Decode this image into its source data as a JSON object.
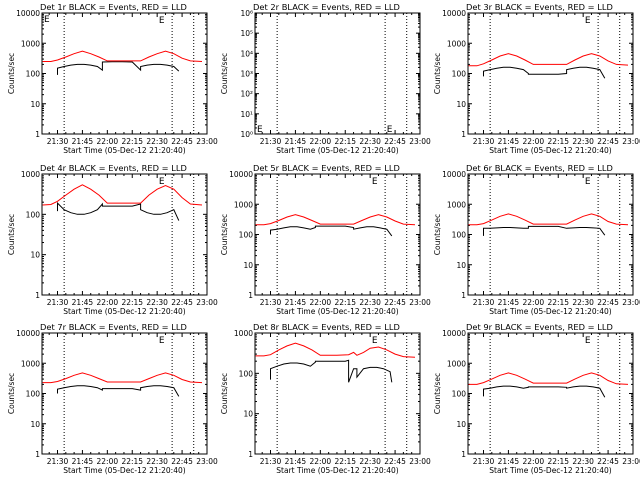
{
  "colors": {
    "events": "#000000",
    "lld": "#ff0000",
    "axis": "#000000",
    "background": "#ffffff"
  },
  "chart_data": [
    {
      "type": "line",
      "title": "Det 1r BLACK = Events, RED = LLD",
      "xlabel": "Start Time (05-Dec-12 21:20:40)",
      "ylabel": "Counts/sec",
      "ylim": [
        1,
        10000
      ],
      "yscale": "log",
      "xticks": [
        "21:30",
        "21:45",
        "22:00",
        "22:15",
        "22:30",
        "22:45",
        "23:00"
      ],
      "yticks": [
        "1",
        "10",
        "100",
        "1000",
        "10000"
      ],
      "markers": [
        "E",
        "E"
      ],
      "series": [
        {
          "name": "Events",
          "x": [
            "21:29",
            "21:30",
            "21:30",
            "21:34",
            "21:38",
            "21:42",
            "21:46",
            "21:50",
            "21:54",
            "21:57",
            "21:57",
            "22:03",
            "22:09",
            "22:15",
            "22:20",
            "22:20",
            "22:24",
            "22:28",
            "22:32",
            "22:36",
            "22:40",
            "22:43",
            "22:43"
          ],
          "y": [
            null,
            90,
            150,
            170,
            190,
            200,
            200,
            190,
            170,
            130,
            240,
            245,
            245,
            240,
            130,
            170,
            190,
            200,
            200,
            190,
            170,
            120,
            null
          ]
        },
        {
          "name": "LLD",
          "x": [
            "21:21",
            "21:26",
            "21:30",
            "21:35",
            "21:40",
            "21:45",
            "21:50",
            "21:55",
            "22:00",
            "22:10",
            "22:20",
            "22:25",
            "22:30",
            "22:35",
            "22:40",
            "22:45",
            "22:50",
            "22:57"
          ],
          "y": [
            250,
            250,
            280,
            350,
            450,
            550,
            450,
            350,
            260,
            260,
            260,
            350,
            450,
            550,
            450,
            320,
            260,
            250
          ]
        }
      ]
    },
    {
      "type": "line",
      "title": "Det 2r BLACK = Events, RED = LLD",
      "xlabel": "Start Time (05-Dec-12 21:20:40)",
      "ylabel": "Counts/sec",
      "ylim": [
        1,
        1000000
      ],
      "yscale": "log",
      "xticks": [
        "21:30",
        "21:45",
        "22:00",
        "22:15",
        "22:30",
        "22:45",
        "23:00"
      ],
      "yticks": [
        "10^0",
        "10^1",
        "10^2",
        "10^3",
        "10^4",
        "10^5",
        "10^6"
      ],
      "markers": [
        "E",
        "E"
      ],
      "series": []
    },
    {
      "type": "line",
      "title": "Det 3r BLACK = Events, RED = LLD",
      "xlabel": "Start Time (05-Dec-12 21:20:40)",
      "ylabel": "Counts/sec",
      "ylim": [
        1,
        10000
      ],
      "yscale": "log",
      "xticks": [
        "21:30",
        "21:45",
        "22:00",
        "22:15",
        "22:30",
        "22:45",
        "23:00"
      ],
      "yticks": [
        "1",
        "10",
        "100",
        "1000",
        "10000"
      ],
      "markers": [
        "E"
      ],
      "series": [
        {
          "name": "Events",
          "x": [
            "21:30",
            "21:30",
            "21:34",
            "21:38",
            "21:42",
            "21:46",
            "21:50",
            "21:54",
            "21:57",
            "21:57",
            "22:03",
            "22:09",
            "22:15",
            "22:20",
            "22:20",
            "22:24",
            "22:28",
            "22:32",
            "22:36",
            "22:40",
            "22:43",
            "22:43"
          ],
          "y": [
            80,
            120,
            135,
            150,
            160,
            160,
            150,
            135,
            100,
            95,
            95,
            95,
            95,
            100,
            135,
            150,
            160,
            160,
            150,
            135,
            70,
            null
          ]
        },
        {
          "name": "LLD",
          "x": [
            "21:21",
            "21:26",
            "21:30",
            "21:35",
            "21:40",
            "21:45",
            "21:50",
            "21:55",
            "22:00",
            "22:10",
            "22:20",
            "22:25",
            "22:30",
            "22:35",
            "22:40",
            "22:45",
            "22:50",
            "22:57"
          ],
          "y": [
            180,
            180,
            210,
            280,
            380,
            450,
            380,
            280,
            200,
            200,
            200,
            280,
            380,
            450,
            380,
            260,
            200,
            190
          ]
        }
      ]
    },
    {
      "type": "line",
      "title": "Det 4r BLACK = Events, RED = LLD",
      "xlabel": "Start Time (05-Dec-12 21:20:40)",
      "ylabel": "Counts/sec",
      "ylim": [
        1,
        1000
      ],
      "yscale": "log",
      "xticks": [
        "21:30",
        "21:45",
        "22:00",
        "22:15",
        "22:30",
        "22:45",
        "23:00"
      ],
      "yticks": [
        "1",
        "10",
        "100",
        "1000"
      ],
      "markers": [
        "E"
      ],
      "series": [
        {
          "name": "Events",
          "x": [
            "21:30",
            "21:30",
            "21:34",
            "21:38",
            "21:42",
            "21:46",
            "21:50",
            "21:54",
            "21:57",
            "21:57",
            "22:03",
            "22:09",
            "22:15",
            "22:20",
            "22:20",
            "22:24",
            "22:28",
            "22:32",
            "22:36",
            "22:40",
            "22:43",
            "22:43"
          ],
          "y": [
            120,
            190,
            130,
            110,
            100,
            100,
            110,
            130,
            180,
            160,
            160,
            160,
            160,
            180,
            130,
            110,
            100,
            100,
            110,
            130,
            70,
            null
          ]
        },
        {
          "name": "LLD",
          "x": [
            "21:21",
            "21:26",
            "21:30",
            "21:35",
            "21:40",
            "21:45",
            "21:50",
            "21:55",
            "22:00",
            "22:10",
            "22:20",
            "22:25",
            "22:30",
            "22:35",
            "22:40",
            "22:45",
            "22:50",
            "22:57"
          ],
          "y": [
            170,
            175,
            210,
            300,
            420,
            540,
            420,
            300,
            190,
            190,
            190,
            300,
            420,
            520,
            420,
            260,
            180,
            170
          ]
        }
      ]
    },
    {
      "type": "line",
      "title": "Det 5r BLACK = Events, RED = LLD",
      "xlabel": "Start Time (05-Dec-12 21:20:40)",
      "ylabel": "Counts/sec",
      "ylim": [
        1,
        10000
      ],
      "yscale": "log",
      "xticks": [
        "21:30",
        "21:45",
        "22:00",
        "22:15",
        "22:30",
        "22:45",
        "23:00"
      ],
      "yticks": [
        "1",
        "10",
        "100",
        "1000",
        "10000"
      ],
      "markers": [
        "E"
      ],
      "series": [
        {
          "name": "Events",
          "x": [
            "21:30",
            "21:30",
            "21:34",
            "21:38",
            "21:42",
            "21:46",
            "21:50",
            "21:54",
            "21:57",
            "21:57",
            "22:03",
            "22:09",
            "22:15",
            "22:20",
            "22:20",
            "22:24",
            "22:28",
            "22:32",
            "22:36",
            "22:40",
            "22:43",
            "22:43"
          ],
          "y": [
            100,
            140,
            150,
            165,
            180,
            180,
            165,
            150,
            170,
            190,
            190,
            190,
            190,
            170,
            150,
            165,
            180,
            180,
            165,
            150,
            90,
            null
          ]
        },
        {
          "name": "LLD",
          "x": [
            "21:21",
            "21:26",
            "21:30",
            "21:35",
            "21:40",
            "21:45",
            "21:50",
            "21:55",
            "22:00",
            "22:10",
            "22:20",
            "22:25",
            "22:30",
            "22:35",
            "22:40",
            "22:45",
            "22:50",
            "22:57"
          ],
          "y": [
            210,
            210,
            230,
            290,
            380,
            450,
            380,
            290,
            220,
            220,
            220,
            290,
            380,
            450,
            380,
            280,
            220,
            210
          ]
        }
      ]
    },
    {
      "type": "line",
      "title": "Det 6r BLACK = Events, RED = LLD",
      "xlabel": "Start Time (05-Dec-12 21:20:40)",
      "ylabel": "Counts/sec",
      "ylim": [
        1,
        10000
      ],
      "yscale": "log",
      "xticks": [
        "21:30",
        "21:45",
        "22:00",
        "22:15",
        "22:30",
        "22:45",
        "23:00"
      ],
      "yticks": [
        "1",
        "10",
        "100",
        "1000",
        "10000"
      ],
      "markers": [
        "E"
      ],
      "series": [
        {
          "name": "Events",
          "x": [
            "21:30",
            "21:30",
            "21:34",
            "21:38",
            "21:42",
            "21:46",
            "21:50",
            "21:54",
            "21:57",
            "21:57",
            "22:03",
            "22:09",
            "22:15",
            "22:20",
            "22:20",
            "22:24",
            "22:28",
            "22:32",
            "22:36",
            "22:40",
            "22:43",
            "22:43"
          ],
          "y": [
            90,
            160,
            160,
            165,
            170,
            170,
            165,
            160,
            160,
            185,
            185,
            185,
            185,
            160,
            160,
            165,
            170,
            170,
            165,
            160,
            95,
            null
          ]
        },
        {
          "name": "LLD",
          "x": [
            "21:21",
            "21:26",
            "21:30",
            "21:35",
            "21:40",
            "21:45",
            "21:50",
            "21:55",
            "22:00",
            "22:10",
            "22:20",
            "22:25",
            "22:30",
            "22:35",
            "22:40",
            "22:45",
            "22:50",
            "22:57"
          ],
          "y": [
            210,
            210,
            230,
            300,
            400,
            480,
            400,
            300,
            220,
            220,
            220,
            300,
            400,
            480,
            400,
            270,
            220,
            210
          ]
        }
      ]
    },
    {
      "type": "line",
      "title": "Det 7r BLACK = Events, RED = LLD",
      "xlabel": "Start Time (05-Dec-12 21:20:40)",
      "ylabel": "Counts/sec",
      "ylim": [
        1,
        10000
      ],
      "yscale": "log",
      "xticks": [
        "21:30",
        "21:45",
        "22:00",
        "22:15",
        "22:30",
        "22:45",
        "23:00"
      ],
      "yticks": [
        "1",
        "10",
        "100",
        "1000",
        "10000"
      ],
      "markers": [
        "E"
      ],
      "series": [
        {
          "name": "Events",
          "x": [
            "21:30",
            "21:30",
            "21:34",
            "21:38",
            "21:42",
            "21:46",
            "21:50",
            "21:54",
            "21:57",
            "21:57",
            "22:03",
            "22:09",
            "22:15",
            "22:20",
            "22:20",
            "22:24",
            "22:28",
            "22:32",
            "22:36",
            "22:40",
            "22:43",
            "22:43"
          ],
          "y": [
            100,
            140,
            155,
            170,
            180,
            180,
            170,
            155,
            130,
            145,
            145,
            145,
            145,
            130,
            155,
            170,
            180,
            180,
            170,
            155,
            80,
            null
          ]
        },
        {
          "name": "LLD",
          "x": [
            "21:21",
            "21:26",
            "21:30",
            "21:35",
            "21:40",
            "21:45",
            "21:50",
            "21:55",
            "22:00",
            "22:10",
            "22:20",
            "22:25",
            "22:30",
            "22:35",
            "22:40",
            "22:45",
            "22:50",
            "22:57"
          ],
          "y": [
            230,
            230,
            250,
            310,
            400,
            480,
            400,
            310,
            240,
            240,
            240,
            310,
            400,
            480,
            400,
            290,
            240,
            230
          ]
        }
      ]
    },
    {
      "type": "line",
      "title": "Det 8r BLACK = Events, RED = LLD",
      "xlabel": "Start Time (05-Dec-12 21:20:40)",
      "ylabel": "Counts/sec",
      "ylim": [
        1,
        1000
      ],
      "yscale": "log",
      "xticks": [
        "21:30",
        "21:45",
        "22:00",
        "22:15",
        "22:30",
        "22:45",
        "23:00"
      ],
      "yticks": [
        "1",
        "10",
        "100",
        "1000"
      ],
      "markers": [
        "E"
      ],
      "series": [
        {
          "name": "Events",
          "x": [
            "21:30",
            "21:30",
            "21:34",
            "21:38",
            "21:42",
            "21:46",
            "21:50",
            "21:54",
            "21:57",
            "21:57",
            "22:03",
            "22:09",
            "22:15",
            "22:17",
            "22:17",
            "22:20",
            "22:22",
            "22:22",
            "22:26",
            "22:30",
            "22:34",
            "22:38",
            "22:42",
            "22:43",
            "22:43"
          ],
          "y": [
            70,
            130,
            150,
            170,
            180,
            180,
            170,
            150,
            190,
            200,
            200,
            200,
            200,
            210,
            60,
            130,
            130,
            80,
            130,
            140,
            140,
            130,
            110,
            60,
            null
          ]
        },
        {
          "name": "LLD",
          "x": [
            "21:21",
            "21:26",
            "21:30",
            "21:35",
            "21:40",
            "21:45",
            "21:50",
            "21:55",
            "22:00",
            "22:10",
            "22:17",
            "22:20",
            "22:22",
            "22:26",
            "22:30",
            "22:35",
            "22:40",
            "22:45",
            "22:50",
            "22:57"
          ],
          "y": [
            270,
            270,
            290,
            380,
            480,
            560,
            480,
            380,
            280,
            280,
            290,
            330,
            280,
            330,
            420,
            450,
            380,
            300,
            260,
            250
          ]
        }
      ]
    },
    {
      "type": "line",
      "title": "Det 9r BLACK = Events, RED = LLD",
      "xlabel": "Start Time (05-Dec-12 21:20:40)",
      "ylabel": "Counts/sec",
      "ylim": [
        1,
        10000
      ],
      "yscale": "log",
      "xticks": [
        "21:30",
        "21:45",
        "22:00",
        "22:15",
        "22:30",
        "22:45",
        "23:00"
      ],
      "yticks": [
        "1",
        "10",
        "100",
        "1000",
        "10000"
      ],
      "markers": [
        "E"
      ],
      "series": [
        {
          "name": "Events",
          "x": [
            "21:30",
            "21:30",
            "21:34",
            "21:38",
            "21:42",
            "21:46",
            "21:50",
            "21:54",
            "21:57",
            "21:57",
            "22:03",
            "22:09",
            "22:15",
            "22:20",
            "22:20",
            "22:24",
            "22:28",
            "22:32",
            "22:36",
            "22:40",
            "22:43",
            "22:43"
          ],
          "y": [
            80,
            140,
            150,
            165,
            175,
            175,
            165,
            150,
            160,
            165,
            165,
            165,
            165,
            160,
            150,
            165,
            175,
            175,
            165,
            150,
            75,
            null
          ]
        },
        {
          "name": "LLD",
          "x": [
            "21:21",
            "21:26",
            "21:30",
            "21:35",
            "21:40",
            "21:45",
            "21:50",
            "21:55",
            "22:00",
            "22:10",
            "22:20",
            "22:25",
            "22:30",
            "22:35",
            "22:40",
            "22:45",
            "22:50",
            "22:57"
          ],
          "y": [
            200,
            200,
            230,
            300,
            400,
            480,
            400,
            300,
            220,
            220,
            220,
            300,
            400,
            480,
            400,
            270,
            210,
            200
          ]
        }
      ]
    }
  ]
}
